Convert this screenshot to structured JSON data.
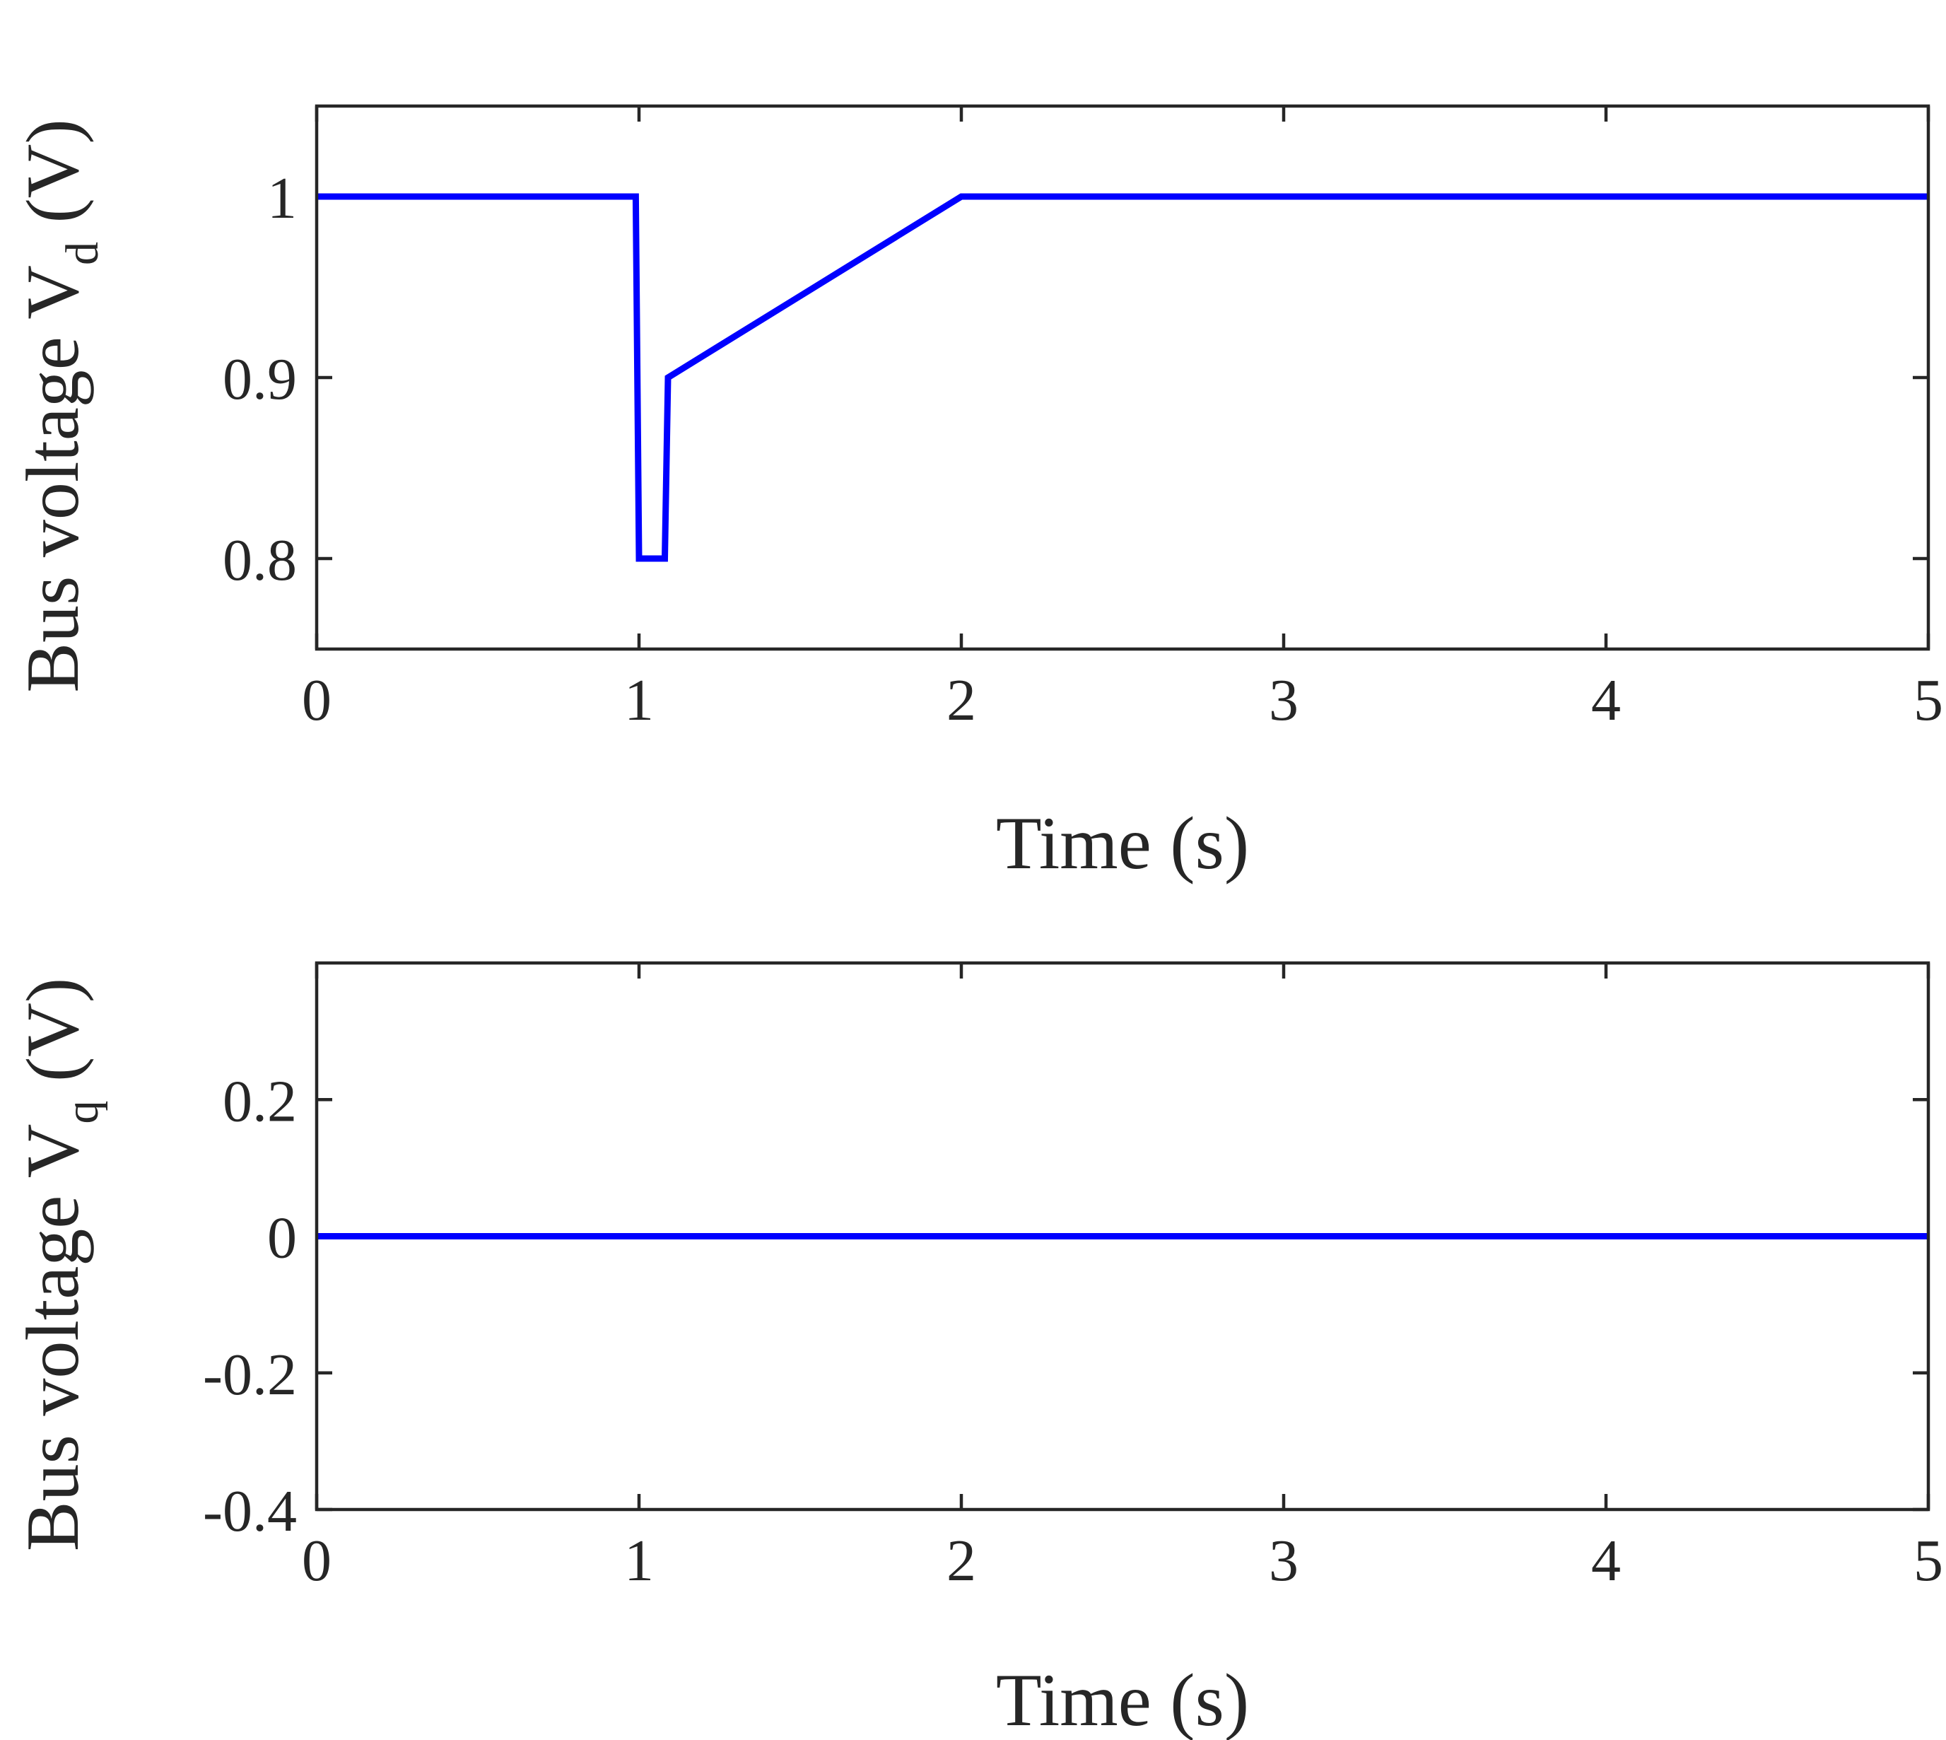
{
  "colors": {
    "series": "#0000FF",
    "axes": "#262626",
    "background": "#FFFFFF"
  },
  "chart_data": [
    {
      "type": "line",
      "title": "",
      "xlabel": "Time (s)",
      "ylabel": {
        "prefix": "Bus voltage V",
        "subscript": "d",
        "suffix": " (V)"
      },
      "xlim": [
        0,
        5
      ],
      "ylim": [
        0.75,
        1.05
      ],
      "xticks": [
        0,
        1,
        2,
        3,
        4,
        5
      ],
      "xtick_labels": [
        "0",
        "1",
        "2",
        "3",
        "4",
        "5"
      ],
      "yticks": [
        0.8,
        0.9,
        1.0
      ],
      "ytick_labels": [
        "0.8",
        "0.9",
        "1"
      ],
      "grid": false,
      "series": [
        {
          "x": [
            0,
            0.99,
            1.0,
            1.08,
            1.09,
            2.0,
            5.0
          ],
          "y": [
            1.0,
            1.0,
            0.8,
            0.8,
            0.9,
            1.0,
            1.0
          ]
        }
      ]
    },
    {
      "type": "line",
      "title": "",
      "xlabel": "Time (s)",
      "ylabel": {
        "prefix": "Bus voltage V",
        "subscript": "q",
        "suffix": " (V)"
      },
      "xlim": [
        0,
        5
      ],
      "ylim": [
        -0.4,
        0.4
      ],
      "xticks": [
        0,
        1,
        2,
        3,
        4,
        5
      ],
      "xtick_labels": [
        "0",
        "1",
        "2",
        "3",
        "4",
        "5"
      ],
      "yticks": [
        -0.4,
        -0.2,
        0,
        0.2
      ],
      "ytick_labels": [
        "-0.4",
        "-0.2",
        "0",
        "0.2"
      ],
      "grid": false,
      "series": [
        {
          "x": [
            0,
            5
          ],
          "y": [
            0,
            0
          ]
        }
      ]
    }
  ]
}
